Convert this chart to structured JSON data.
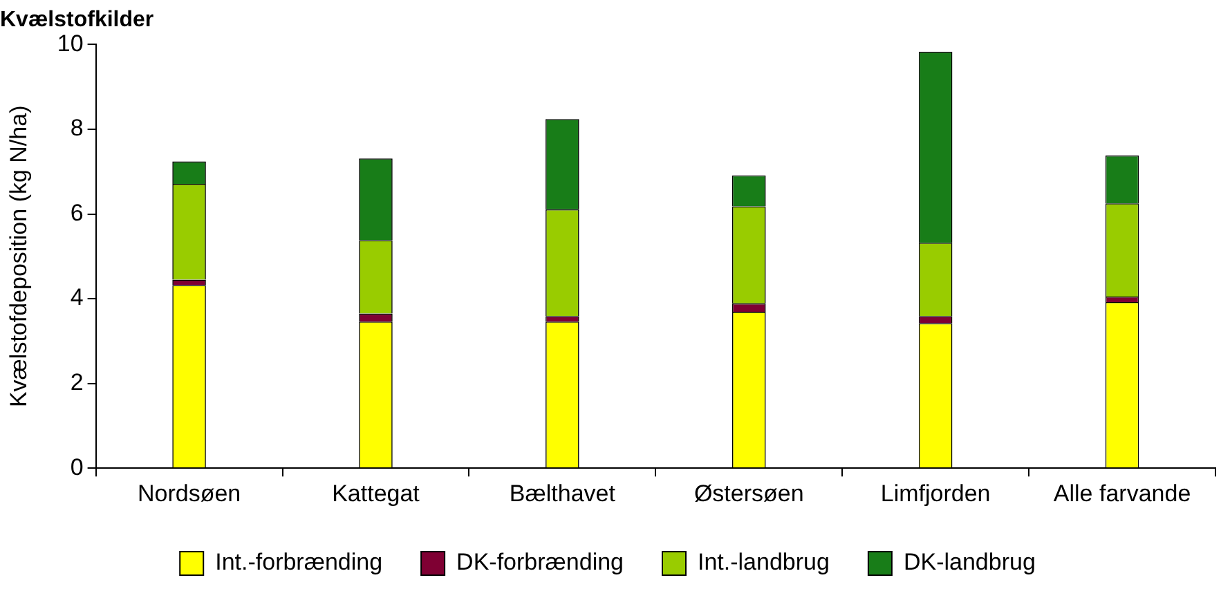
{
  "chart_data": {
    "type": "bar",
    "title": "Kvælstofkilder",
    "ylabel": "Kvælstofdeposition (kg N/ha)",
    "categories": [
      "Nordsøen",
      "Kattegat",
      "Bælthavet",
      "Østersøen",
      "Limfjorden",
      "Alle farvande"
    ],
    "stacked": true,
    "series": [
      {
        "name": "Int.-forbrænding",
        "color": "#ffff00",
        "values": [
          4.32,
          3.46,
          3.46,
          3.69,
          3.42,
          3.92
        ]
      },
      {
        "name": "DK-forbrænding",
        "color": "#7f0033",
        "values": [
          0.13,
          0.19,
          0.13,
          0.2,
          0.17,
          0.13
        ]
      },
      {
        "name": "Int.-landbrug",
        "color": "#99cc00",
        "values": [
          2.26,
          1.73,
          2.52,
          2.29,
          1.73,
          2.2
        ]
      },
      {
        "name": "DK-landbrug",
        "color": "#187d18",
        "values": [
          0.53,
          1.93,
          2.13,
          0.73,
          4.51,
          1.13
        ]
      }
    ],
    "ylim": [
      0,
      10
    ],
    "yticks": [
      0,
      2,
      4,
      6,
      8,
      10
    ],
    "grid": false,
    "legend": "bottom"
  }
}
